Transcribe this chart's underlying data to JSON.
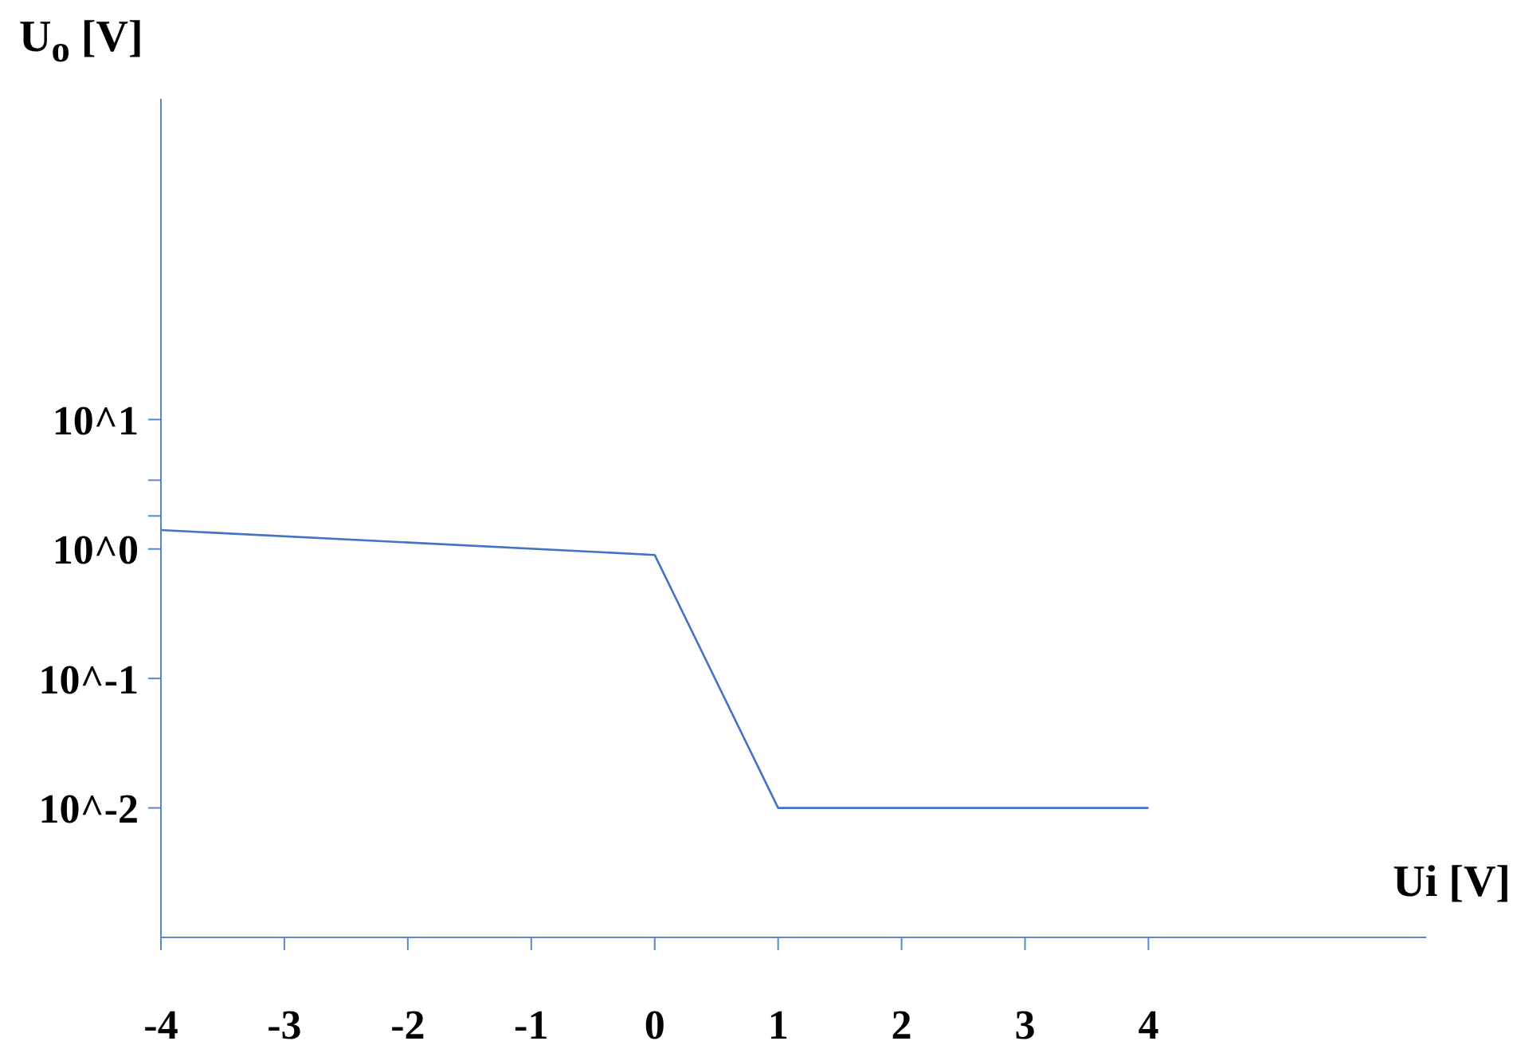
{
  "chart_data": {
    "type": "line",
    "xlabel": "Ui [V]",
    "ylabel": "U$_{o}$ [V]",
    "x": [
      -4,
      0,
      1,
      4
    ],
    "series": [
      {
        "color": "#4472c4",
        "values": [
          1.4,
          0.9,
          0.01,
          0.01
        ]
      }
    ],
    "xlim": [
      -4,
      6.25
    ],
    "xticks": [
      -4,
      -3,
      -2,
      -1,
      0,
      1,
      2,
      3,
      4
    ],
    "log": true,
    "ylim": [
      0.001,
      3000
    ],
    "yticks": [
      {
        "value": 0.01,
        "label": "10^-2"
      },
      {
        "value": 0.1,
        "label": "10^-1"
      },
      {
        "value": 1,
        "label": "10^0"
      },
      {
        "value": 1.8,
        "label": null
      },
      {
        "value": 3.4,
        "label": null
      },
      {
        "value": 10,
        "label": "10^1"
      }
    ],
    "grid": false,
    "marker": "none",
    "line_style": "solid"
  }
}
